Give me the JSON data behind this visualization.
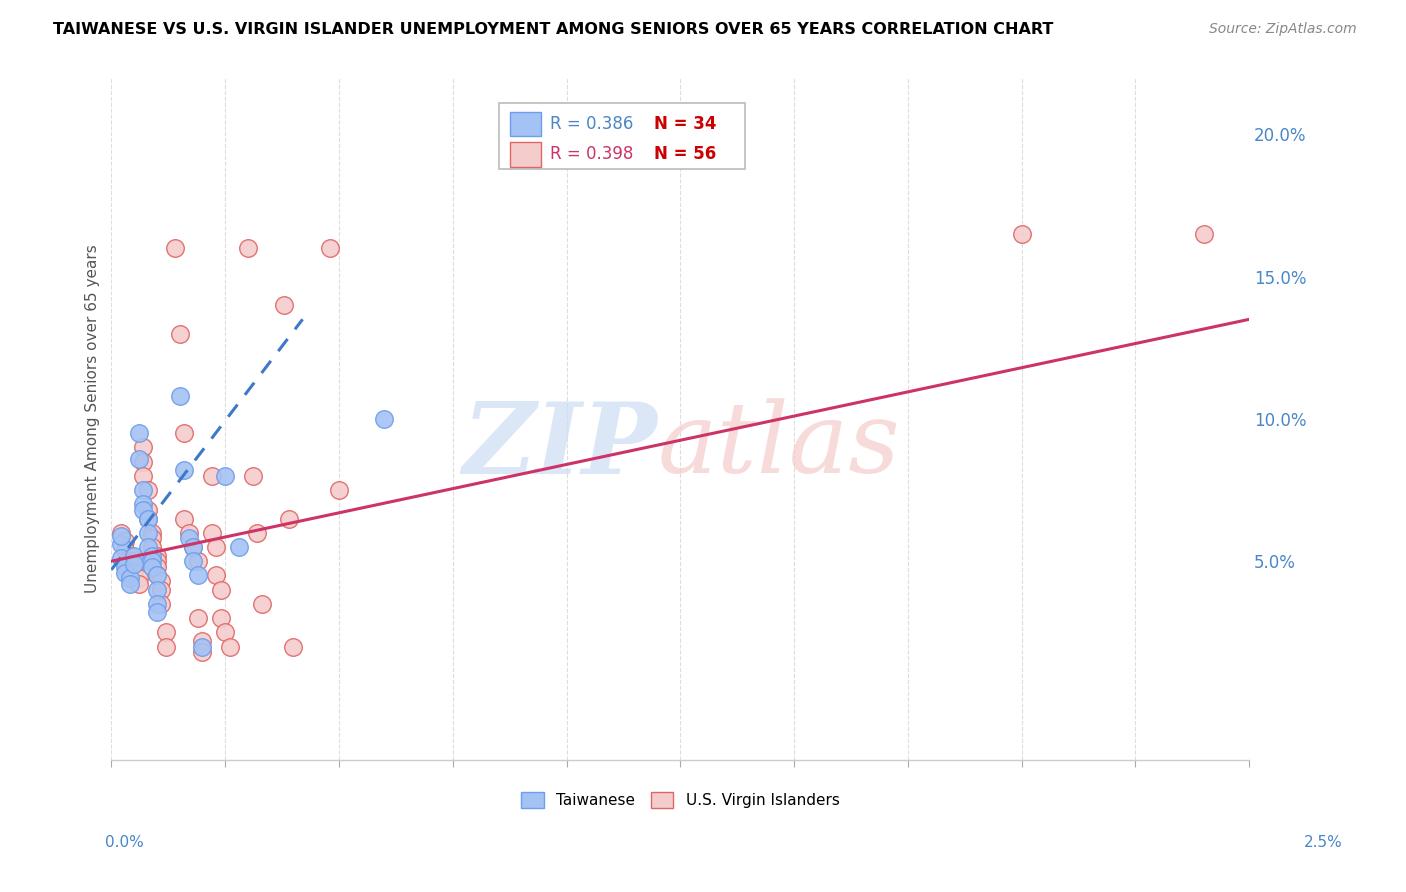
{
  "title": "TAIWANESE VS U.S. VIRGIN ISLANDER UNEMPLOYMENT AMONG SENIORS OVER 65 YEARS CORRELATION CHART",
  "source": "Source: ZipAtlas.com",
  "ylabel": "Unemployment Among Seniors over 65 years",
  "right_yticks": [
    "5.0%",
    "10.0%",
    "15.0%",
    "20.0%"
  ],
  "right_ytick_vals": [
    0.05,
    0.1,
    0.15,
    0.2
  ],
  "xlim": [
    0.0,
    0.025
  ],
  "ylim": [
    -0.02,
    0.22
  ],
  "legend_blue_R": "R = 0.386",
  "legend_blue_N": "N = 34",
  "legend_pink_R": "R = 0.398",
  "legend_pink_N": "N = 56",
  "blue_color": "#a4c2f4",
  "blue_edge": "#6d9eeb",
  "pink_color": "#f4cccc",
  "pink_edge": "#e06666",
  "blue_scatter": [
    [
      0.0002,
      0.056
    ],
    [
      0.0002,
      0.059
    ],
    [
      0.0002,
      0.051
    ],
    [
      0.0003,
      0.048
    ],
    [
      0.0003,
      0.046
    ],
    [
      0.0004,
      0.044
    ],
    [
      0.0004,
      0.042
    ],
    [
      0.0005,
      0.052
    ],
    [
      0.0005,
      0.049
    ],
    [
      0.0006,
      0.095
    ],
    [
      0.0006,
      0.086
    ],
    [
      0.0007,
      0.075
    ],
    [
      0.0007,
      0.07
    ],
    [
      0.0007,
      0.068
    ],
    [
      0.0008,
      0.065
    ],
    [
      0.0008,
      0.06
    ],
    [
      0.0008,
      0.055
    ],
    [
      0.0009,
      0.052
    ],
    [
      0.0009,
      0.05
    ],
    [
      0.0009,
      0.048
    ],
    [
      0.001,
      0.045
    ],
    [
      0.001,
      0.04
    ],
    [
      0.001,
      0.035
    ],
    [
      0.001,
      0.032
    ],
    [
      0.0015,
      0.108
    ],
    [
      0.0016,
      0.082
    ],
    [
      0.0017,
      0.058
    ],
    [
      0.0018,
      0.055
    ],
    [
      0.0018,
      0.05
    ],
    [
      0.0019,
      0.045
    ],
    [
      0.002,
      0.02
    ],
    [
      0.0025,
      0.08
    ],
    [
      0.0028,
      0.055
    ],
    [
      0.006,
      0.1
    ]
  ],
  "pink_scatter": [
    [
      0.0002,
      0.06
    ],
    [
      0.0003,
      0.057
    ],
    [
      0.0003,
      0.054
    ],
    [
      0.0004,
      0.052
    ],
    [
      0.0004,
      0.05
    ],
    [
      0.0005,
      0.048
    ],
    [
      0.0005,
      0.046
    ],
    [
      0.0006,
      0.044
    ],
    [
      0.0006,
      0.042
    ],
    [
      0.0007,
      0.09
    ],
    [
      0.0007,
      0.085
    ],
    [
      0.0007,
      0.08
    ],
    [
      0.0008,
      0.075
    ],
    [
      0.0008,
      0.068
    ],
    [
      0.0008,
      0.065
    ],
    [
      0.0009,
      0.06
    ],
    [
      0.0009,
      0.058
    ],
    [
      0.0009,
      0.055
    ],
    [
      0.001,
      0.052
    ],
    [
      0.001,
      0.05
    ],
    [
      0.001,
      0.048
    ],
    [
      0.001,
      0.045
    ],
    [
      0.0011,
      0.043
    ],
    [
      0.0011,
      0.04
    ],
    [
      0.0011,
      0.035
    ],
    [
      0.0012,
      0.025
    ],
    [
      0.0012,
      0.02
    ],
    [
      0.0014,
      0.16
    ],
    [
      0.0015,
      0.13
    ],
    [
      0.0016,
      0.095
    ],
    [
      0.0016,
      0.065
    ],
    [
      0.0017,
      0.06
    ],
    [
      0.0018,
      0.055
    ],
    [
      0.0019,
      0.05
    ],
    [
      0.0019,
      0.03
    ],
    [
      0.002,
      0.022
    ],
    [
      0.002,
      0.018
    ],
    [
      0.0022,
      0.08
    ],
    [
      0.0022,
      0.06
    ],
    [
      0.0023,
      0.055
    ],
    [
      0.0023,
      0.045
    ],
    [
      0.0024,
      0.04
    ],
    [
      0.0024,
      0.03
    ],
    [
      0.0025,
      0.025
    ],
    [
      0.0026,
      0.02
    ],
    [
      0.003,
      0.16
    ],
    [
      0.0031,
      0.08
    ],
    [
      0.0032,
      0.06
    ],
    [
      0.0033,
      0.035
    ],
    [
      0.0038,
      0.14
    ],
    [
      0.0039,
      0.065
    ],
    [
      0.004,
      0.02
    ],
    [
      0.0048,
      0.16
    ],
    [
      0.005,
      0.075
    ],
    [
      0.02,
      0.165
    ],
    [
      0.024,
      0.165
    ]
  ],
  "blue_trend_x": [
    0.0,
    0.0042
  ],
  "blue_trend_y": [
    0.047,
    0.135
  ],
  "pink_trend_x": [
    0.0,
    0.025
  ],
  "pink_trend_y": [
    0.05,
    0.135
  ],
  "blue_trend_color": "#3d78c9",
  "pink_trend_color": "#cc3366"
}
